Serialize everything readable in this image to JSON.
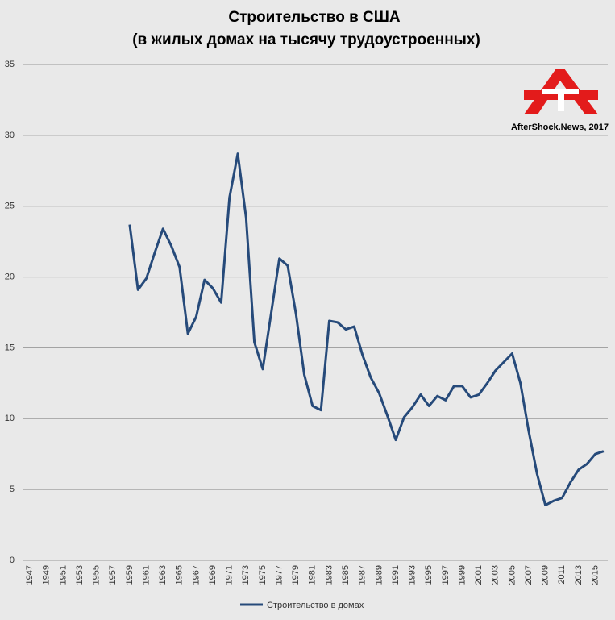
{
  "chart_data": {
    "type": "line",
    "title": "Строительство в США",
    "subtitle": "(в жилых домах на тысячу трудоустроенных)",
    "watermark": "AfterShock.News, 2017",
    "categories": [
      "1947",
      null,
      "1949",
      null,
      "1951",
      null,
      "1953",
      null,
      "1955",
      null,
      "1957",
      null,
      "1959",
      null,
      "1961",
      null,
      "1963",
      null,
      "1965",
      null,
      "1967",
      null,
      "1969",
      null,
      "1971",
      null,
      "1973",
      null,
      "1975",
      null,
      "1977",
      null,
      "1979",
      null,
      "1981",
      null,
      "1983",
      null,
      "1985",
      null,
      "1987",
      null,
      "1989",
      null,
      "1991",
      null,
      "1993",
      null,
      "1995",
      null,
      "1997",
      null,
      "1999",
      null,
      "2001",
      null,
      "2003",
      null,
      "2005",
      null,
      "2007",
      null,
      "2009",
      null,
      "2011",
      null,
      "2013",
      null,
      "2015",
      null
    ],
    "series": [
      {
        "name": "Строительство в домах",
        "color": "#264a7a",
        "values": [
          null,
          null,
          null,
          null,
          null,
          null,
          null,
          null,
          null,
          null,
          null,
          null,
          23.7,
          19.1,
          19.9,
          21.7,
          23.4,
          22.2,
          20.7,
          16.0,
          17.2,
          19.8,
          19.2,
          18.2,
          25.6,
          28.7,
          24.2,
          15.4,
          13.5,
          17.4,
          21.3,
          20.8,
          17.4,
          13.1,
          10.9,
          10.6,
          16.9,
          16.8,
          16.3,
          16.5,
          14.5,
          12.9,
          11.8,
          10.2,
          8.5,
          10.1,
          10.8,
          11.7,
          10.9,
          11.6,
          11.3,
          12.3,
          12.3,
          11.5,
          11.7,
          12.5,
          13.4,
          14.0,
          14.6,
          12.5,
          9.1,
          6.1,
          3.9,
          4.2,
          4.4,
          5.5,
          6.4,
          6.8,
          7.5,
          7.7
        ]
      }
    ],
    "ylim": [
      0,
      35
    ],
    "yticks": [
      0,
      5,
      10,
      15,
      20,
      25,
      30,
      35
    ],
    "grid": true,
    "legend": "bottom"
  }
}
